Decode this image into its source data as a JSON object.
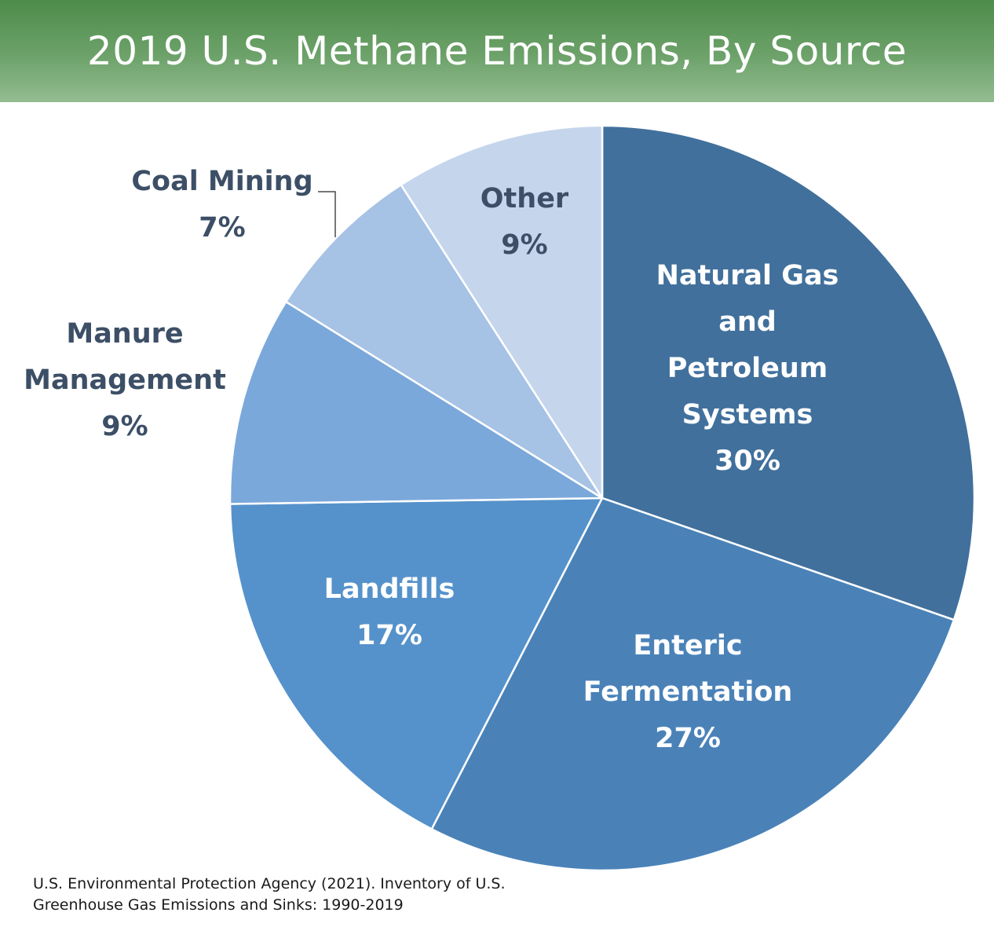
{
  "title": "2019 U.S. Methane Emissions, By Source",
  "source": {
    "line1": "U.S. Environmental Protection Agency (2021). Inventory of U.S.",
    "line2": "Greenhouse Gas Emissions and Sinks: 1990-2019"
  },
  "chart_data": {
    "type": "pie",
    "title": "2019 U.S. Methane Emissions, By Source",
    "unit": "%",
    "start": "12 o'clock, clockwise",
    "slices": [
      {
        "name": "Natural Gas and Petroleum Systems",
        "label_lines": [
          "Natural Gas",
          "and",
          "Petroleum",
          "Systems",
          "30%"
        ],
        "value": 30,
        "color": "#41709c",
        "label_color": "#ffffff"
      },
      {
        "name": "Enteric Fermentation",
        "label_lines": [
          "Enteric",
          "Fermentation",
          "27%"
        ],
        "value": 27,
        "color": "#4a82b8",
        "label_color": "#ffffff"
      },
      {
        "name": "Landfills",
        "label_lines": [
          "Landfills",
          "17%"
        ],
        "value": 17,
        "color": "#5592cb",
        "label_color": "#ffffff"
      },
      {
        "name": "Manure Management",
        "label_lines": [
          "Manure",
          "Management",
          "9%"
        ],
        "value": 9,
        "color": "#7ba8da",
        "label_color": "#3c4f66"
      },
      {
        "name": "Coal Mining",
        "label_lines": [
          "Coal Mining",
          "7%"
        ],
        "value": 7,
        "color": "#a6c2e5",
        "label_color": "#3c4f66"
      },
      {
        "name": "Other",
        "label_lines": [
          "Other",
          "9%"
        ],
        "value": 9,
        "color": "#c4d5ec",
        "label_color": "#3c4f66"
      }
    ]
  }
}
